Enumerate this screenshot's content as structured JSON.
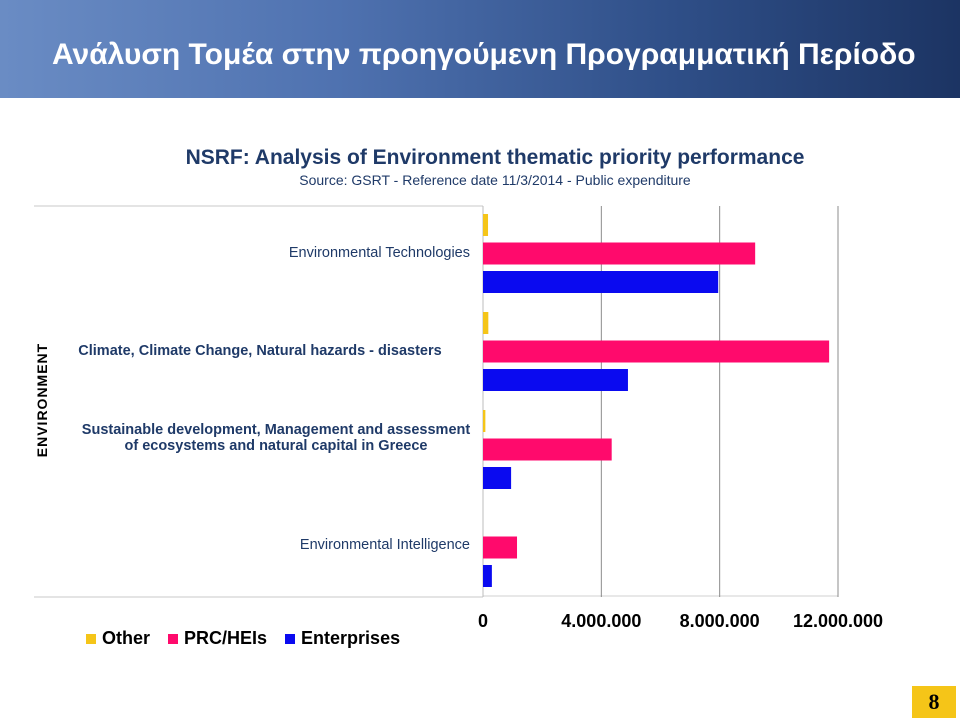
{
  "header": {
    "title": "Ανάλυση Τομέα στην προηγούμενη Προγραμματική Περίοδο"
  },
  "chart_data": {
    "type": "bar",
    "orientation": "horizontal",
    "title": "NSRF: Analysis of Environment thematic priority performance",
    "subtitle": "Source: GSRT - Reference date 11/3/2014 - Public expenditure",
    "group_label": "ENVIRONMENT",
    "categories": [
      "Environmental Technologies",
      "Climate, Climate Change, Natural hazards - disasters",
      "Sustainable development, Management and assessment of ecosystems and natural capital in Greece",
      "Environmental Intelligence"
    ],
    "series": [
      {
        "name": "Other",
        "color": "#f5c518",
        "values": [
          170000,
          180000,
          80000,
          0
        ]
      },
      {
        "name": "PRC/HEIs",
        "color": "#ff0a6c",
        "values": [
          9200000,
          11700000,
          4350000,
          1150000
        ]
      },
      {
        "name": "Enterprises",
        "color": "#0a0af0",
        "values": [
          7950000,
          4900000,
          950000,
          300000
        ]
      }
    ],
    "xlim": [
      0,
      12000000
    ],
    "tick_values": [
      0,
      4000000,
      8000000,
      12000000
    ],
    "tick_labels": [
      "0",
      "4.000.000",
      "8.000.000",
      "12.000.000"
    ],
    "grid": true,
    "legend_position": "bottom-left"
  },
  "page_number": "8"
}
